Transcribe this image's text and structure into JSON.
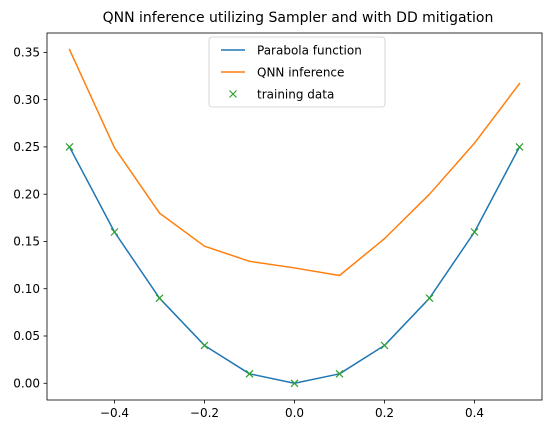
{
  "chart_data": {
    "type": "line",
    "title": "QNN inference utilizing Sampler and with DD mitigation",
    "xlabel": "",
    "ylabel": "",
    "xlim": [
      -0.55,
      0.55
    ],
    "ylim": [
      -0.0177,
      0.3705
    ],
    "x_ticks": [
      -0.4,
      -0.2,
      0.0,
      0.2,
      0.4
    ],
    "x_tick_labels": [
      "−0.4",
      "−0.2",
      "0.0",
      "0.2",
      "0.4"
    ],
    "y_ticks": [
      0.0,
      0.05,
      0.1,
      0.15,
      0.2,
      0.25,
      0.3,
      0.35
    ],
    "y_tick_labels": [
      "0.00",
      "0.05",
      "0.10",
      "0.15",
      "0.20",
      "0.25",
      "0.30",
      "0.35"
    ],
    "grid": false,
    "legend_position": "top-center",
    "series": [
      {
        "name": "Parabola function",
        "kind": "line",
        "color": "#1f77b4",
        "x": [
          -0.5,
          -0.4,
          -0.3,
          -0.2,
          -0.1,
          0.0,
          0.1,
          0.2,
          0.3,
          0.4,
          0.5
        ],
        "y": [
          0.25,
          0.16,
          0.09,
          0.04,
          0.01,
          0.0,
          0.01,
          0.04,
          0.09,
          0.16,
          0.25
        ]
      },
      {
        "name": "QNN inference",
        "kind": "line",
        "color": "#ff7f0e",
        "x": [
          -0.5,
          -0.4,
          -0.3,
          -0.2,
          -0.1,
          0.0,
          0.1,
          0.2,
          0.3,
          0.4,
          0.5
        ],
        "y": [
          0.353,
          0.249,
          0.18,
          0.145,
          0.129,
          0.122,
          0.114,
          0.153,
          0.2,
          0.254,
          0.317
        ]
      },
      {
        "name": "training data",
        "kind": "marker-x",
        "color": "#2ca02c",
        "x": [
          -0.5,
          -0.4,
          -0.3,
          -0.2,
          -0.1,
          0.0,
          0.1,
          0.2,
          0.3,
          0.4,
          0.5
        ],
        "y": [
          0.25,
          0.16,
          0.09,
          0.04,
          0.01,
          0.0,
          0.01,
          0.04,
          0.09,
          0.16,
          0.25
        ]
      }
    ]
  }
}
